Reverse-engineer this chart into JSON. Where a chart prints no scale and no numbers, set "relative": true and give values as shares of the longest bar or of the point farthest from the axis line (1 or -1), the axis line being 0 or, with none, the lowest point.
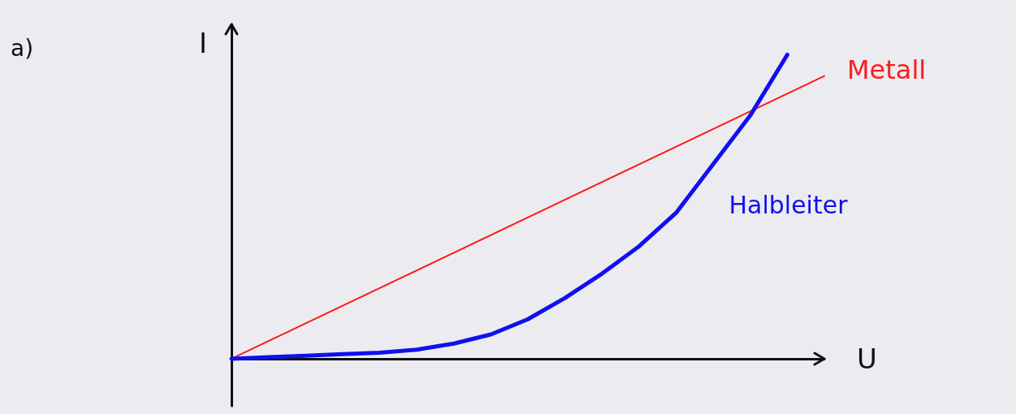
{
  "chart_data": {
    "type": "line",
    "title": "a)",
    "xlabel": "U",
    "ylabel": "I",
    "relative": true,
    "categories": [
      null,
      null,
      null,
      null,
      null,
      null,
      null,
      null,
      null,
      null,
      null,
      null,
      null,
      null,
      null,
      null,
      null
    ],
    "grid": false,
    "legend": false,
    "marker": "none",
    "line_style": "solid",
    "series": [
      {
        "name": "Metall",
        "color": "#ff1a1a",
        "values": [
          0,
          null,
          null,
          null,
          null,
          null,
          null,
          null,
          null,
          null,
          null,
          null,
          null,
          null,
          null,
          null,
          0.93
        ]
      },
      {
        "name": "Halbleiter",
        "color": "#1010ee",
        "values": [
          0,
          0.005,
          0.01,
          0.015,
          0.02,
          0.03,
          0.05,
          0.08,
          0.13,
          0.2,
          0.28,
          0.37,
          0.48,
          0.64,
          0.8,
          1,
          null
        ]
      }
    ]
  }
}
